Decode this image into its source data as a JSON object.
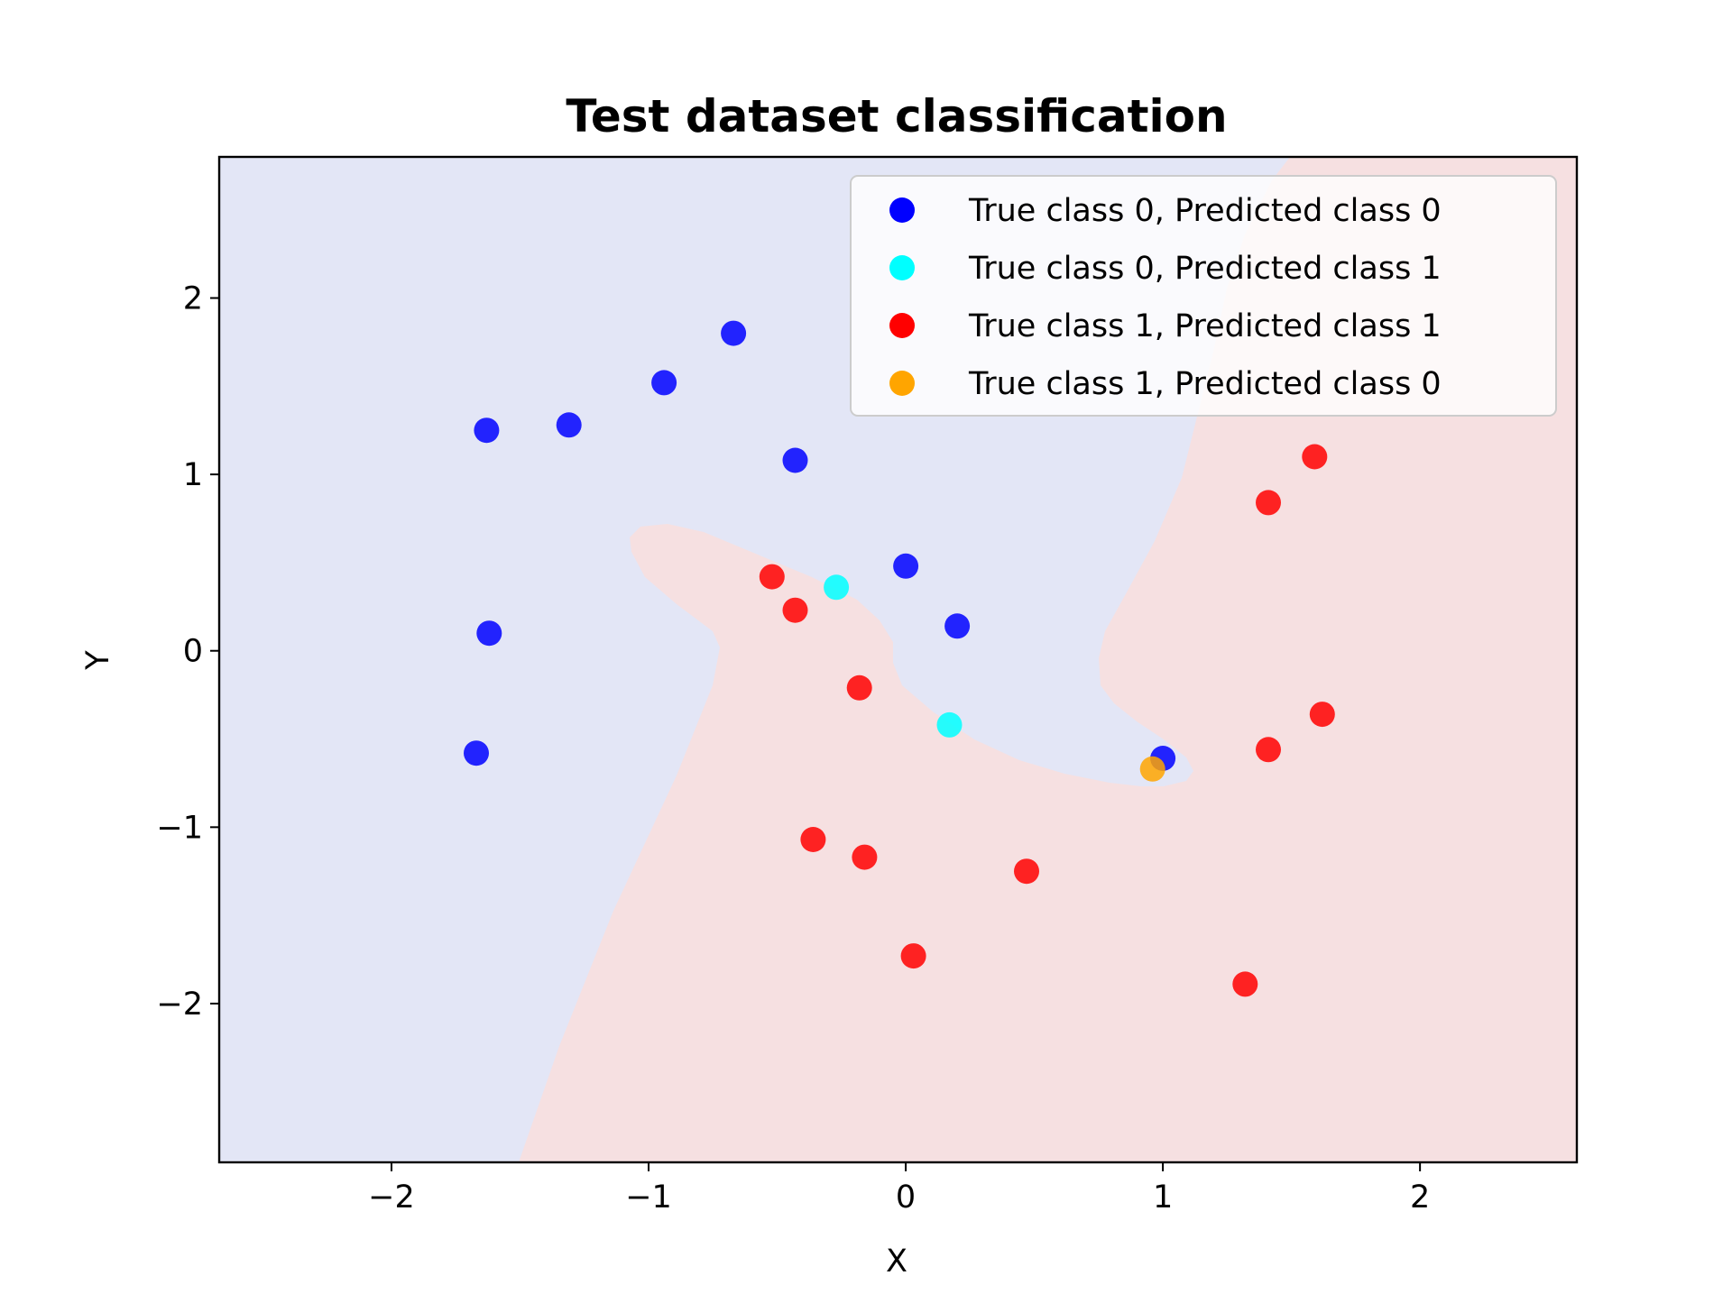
{
  "chart_data": {
    "type": "scatter",
    "title": "Test dataset classification",
    "xlabel": "X",
    "ylabel": "Y",
    "xlim": [
      -2.67,
      2.61
    ],
    "ylim": [
      -2.9,
      2.8
    ],
    "xticks": [
      -2,
      -1,
      0,
      1,
      2
    ],
    "yticks": [
      -2,
      -1,
      0,
      1,
      2
    ],
    "grid": false,
    "legend_position": "top-right",
    "background_regions": [
      {
        "predicted_class": 0,
        "color": "#e3e6f6"
      },
      {
        "predicted_class": 1,
        "color": "#f6e0e1"
      }
    ],
    "series": [
      {
        "name": "True class 0, Predicted class 0",
        "color": "#0000ff",
        "points": [
          [
            -1.63,
            1.25
          ],
          [
            -1.31,
            1.28
          ],
          [
            -0.94,
            1.52
          ],
          [
            -0.67,
            1.8
          ],
          [
            -0.43,
            1.08
          ],
          [
            0.0,
            0.48
          ],
          [
            0.2,
            0.14
          ],
          [
            -1.62,
            0.1
          ],
          [
            -1.67,
            -0.58
          ],
          [
            1.0,
            -0.61
          ]
        ]
      },
      {
        "name": "True class 0, Predicted class 1",
        "color": "#00ffff",
        "points": [
          [
            -0.27,
            0.36
          ],
          [
            0.17,
            -0.42
          ]
        ]
      },
      {
        "name": "True class 1, Predicted class 1",
        "color": "#ff0000",
        "points": [
          [
            -0.52,
            0.42
          ],
          [
            -0.43,
            0.23
          ],
          [
            -0.18,
            -0.21
          ],
          [
            -0.36,
            -1.07
          ],
          [
            -0.16,
            -1.17
          ],
          [
            0.03,
            -1.73
          ],
          [
            0.47,
            -1.25
          ],
          [
            1.32,
            -1.89
          ],
          [
            1.41,
            -0.56
          ],
          [
            1.62,
            -0.36
          ],
          [
            1.41,
            0.84
          ],
          [
            1.59,
            1.1
          ]
        ]
      },
      {
        "name": "True class 1, Predicted class 0",
        "color": "#ffa500",
        "points": [
          [
            0.96,
            -0.67
          ]
        ]
      }
    ]
  }
}
